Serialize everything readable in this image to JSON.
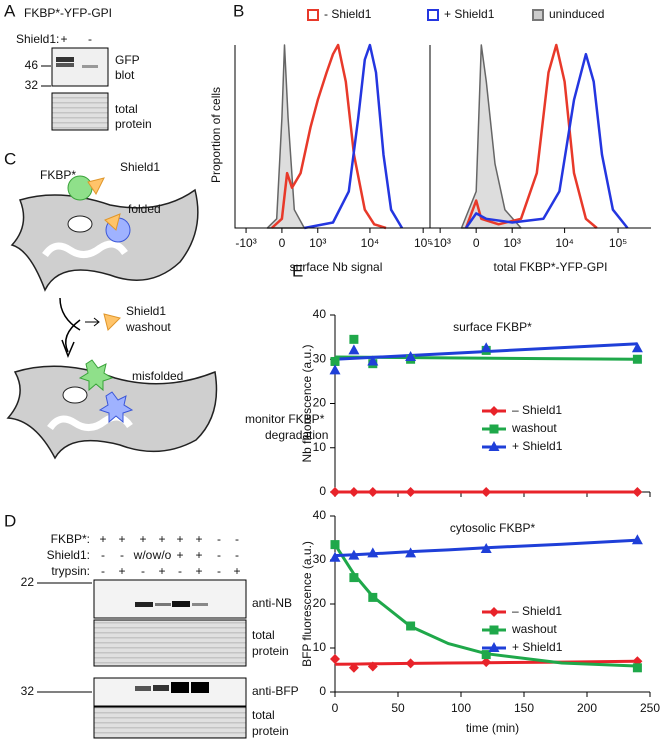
{
  "panel_a": {
    "label": "A",
    "title": "FKBP*-YFP-GPI",
    "lane_header": "Shield1:",
    "lanes": [
      "+",
      "-"
    ],
    "markers": [
      "46",
      "32"
    ],
    "blot_label": [
      "GFP",
      "blot"
    ],
    "loading_label": [
      "total",
      "protein"
    ]
  },
  "panel_b": {
    "label": "B",
    "legend": [
      {
        "name": "- Shield1",
        "color": "#e8392a"
      },
      {
        "name": "+ Shield1",
        "color": "#2436e0"
      },
      {
        "name": "uninduced",
        "color": "#777777"
      }
    ],
    "y_label": "Proportion of cells",
    "histograms": [
      {
        "x_label": "surface Nb signal",
        "xlim": [
          -1660,
          182000
        ],
        "ylim": [
          0,
          100
        ],
        "xticks": [
          {
            "value": -1000,
            "label": "-10³"
          },
          0,
          {
            "value": 1000,
            "label": "10³"
          },
          {
            "value": 10000,
            "label": "10⁴"
          },
          {
            "value": 100000,
            "label": "10⁵"
          }
        ],
        "series": [
          {
            "color": "#666666",
            "fill": "#dddddd",
            "x": [
              -300,
              -100,
              0,
              50,
              120,
              250,
              500
            ],
            "values": [
              0,
              5,
              60,
              100,
              60,
              10,
              0
            ]
          },
          {
            "color": "#e8392a",
            "x": [
              -200,
              0,
              100,
              200,
              400,
              700,
              1000,
              1500,
              2000,
              2500,
              3500,
              5000,
              8000,
              12000,
              20000
            ],
            "values": [
              0,
              5,
              30,
              22,
              30,
              55,
              70,
              85,
              95,
              100,
              80,
              40,
              10,
              2,
              0
            ]
          },
          {
            "color": "#2436e0",
            "x": [
              500,
              2000,
              4000,
              6000,
              8000,
              10000,
              13000,
              18000,
              25000,
              40000
            ],
            "values": [
              0,
              3,
              20,
              60,
              92,
              100,
              85,
              40,
              10,
              0
            ]
          }
        ]
      },
      {
        "x_label": "total FKBP*-YFP-GPI",
        "xlim": [
          -1590,
          413000
        ],
        "ylim": [
          0,
          100
        ],
        "xticks": [
          {
            "value": -1000,
            "label": "-10³"
          },
          0,
          {
            "value": 1000,
            "label": "10³"
          },
          {
            "value": 10000,
            "label": "10⁴"
          },
          {
            "value": 100000,
            "label": "10⁵"
          }
        ],
        "series": [
          {
            "color": "#666666",
            "fill": "#dddddd",
            "x": [
              -300,
              0,
              100,
              200,
              400,
              700,
              1500
            ],
            "values": [
              0,
              20,
              100,
              80,
              35,
              10,
              0
            ]
          },
          {
            "color": "#e8392a",
            "x": [
              -200,
              0,
              100,
              500,
              1500,
              3000,
              5000,
              7000,
              10000,
              15000,
              25000,
              40000
            ],
            "values": [
              0,
              15,
              5,
              2,
              5,
              30,
              85,
              100,
              80,
              30,
              5,
              0
            ]
          },
          {
            "color": "#2436e0",
            "x": [
              -200,
              0,
              200,
              1000,
              4000,
              8000,
              15000,
              25000,
              35000,
              50000,
              80000,
              150000
            ],
            "values": [
              0,
              8,
              5,
              3,
              5,
              20,
              70,
              95,
              80,
              40,
              10,
              0
            ]
          }
        ]
      }
    ]
  },
  "panel_c": {
    "label": "C",
    "fkbp": "FKBP*",
    "shield": "Shield1",
    "folded": "folded",
    "washout": [
      "Shield1",
      "washout"
    ],
    "misfolded": "misfolded",
    "monitor": [
      "monitor FKBP*",
      "degradation"
    ]
  },
  "panel_d": {
    "label": "D",
    "rows": [
      {
        "name": "FKBP*:",
        "lanes": [
          "+",
          "+",
          "+",
          "+",
          "+",
          "+",
          "-",
          "-"
        ]
      },
      {
        "name": "Shield1:",
        "lanes": [
          "-",
          "-",
          "w/o",
          "w/o",
          "+",
          "+",
          "-",
          "-"
        ]
      },
      {
        "name": "trypsin:",
        "lanes": [
          "-",
          "+",
          "-",
          "+",
          "-",
          "+",
          "-",
          "+"
        ]
      }
    ],
    "markers": [
      "22",
      "32"
    ],
    "blot_labels": [
      "anti-NB",
      "anti-BFP"
    ],
    "loading_label": [
      "total",
      "protein"
    ]
  },
  "panel_e": {
    "label": "E",
    "charts": [
      {
        "type": "line",
        "title": "surface FKBP*",
        "y_label": "Nb fluorescence (a.u.)",
        "xlim": [
          0,
          250
        ],
        "xticks": [
          0,
          50,
          100,
          150,
          200,
          250
        ],
        "ylim": [
          0,
          40
        ],
        "yticks": [
          0,
          10,
          20,
          30,
          40
        ],
        "x": [
          0,
          15,
          30,
          60,
          120,
          240
        ],
        "fit_x": [
          0,
          240
        ],
        "series": [
          {
            "name": "– Shield1",
            "color": "#e8232a",
            "marker": "diamond",
            "values": [
              0,
              0,
              0,
              0,
              0,
              0
            ],
            "fit": [
              0,
              0
            ]
          },
          {
            "name": "washout",
            "color": "#1fa84a",
            "marker": "square",
            "values": [
              29.5,
              34.5,
              29,
              30,
              32,
              30
            ],
            "fit": [
              30.5,
              30
            ]
          },
          {
            "name": "+ Shield1",
            "color": "#1f3fd8",
            "marker": "triangle",
            "values": [
              27.5,
              32,
              29.5,
              30.5,
              32.5,
              32.5
            ],
            "fit": [
              30,
              33.5
            ]
          }
        ]
      },
      {
        "type": "line",
        "title": "cytosolic FKBP*",
        "y_label": "BFP fluorescence (a.u.)",
        "x_label": "time (min)",
        "xlim": [
          0,
          250
        ],
        "xticks": [
          0,
          50,
          100,
          150,
          200,
          250
        ],
        "ylim": [
          0,
          40
        ],
        "yticks": [
          0,
          10,
          20,
          30,
          40
        ],
        "x": [
          0,
          15,
          30,
          60,
          120,
          240
        ],
        "fit_x": [
          0,
          15,
          30,
          60,
          90,
          120,
          180,
          240
        ],
        "series": [
          {
            "name": "– Shield1",
            "color": "#e8232a",
            "marker": "diamond",
            "values": [
              7.5,
              5.5,
              5.8,
              6.5,
              6.8,
              7
            ],
            "fit": [
              6.3,
              6.35,
              6.4,
              6.5,
              6.6,
              6.65,
              6.8,
              7
            ]
          },
          {
            "name": "washout",
            "color": "#1fa84a",
            "marker": "square",
            "values": [
              33.5,
              26,
              21.5,
              15,
              8.5,
              5.5
            ],
            "fit": [
              33.5,
              26.8,
              21.7,
              14.9,
              11,
              8.7,
              6.6,
              5.9
            ]
          },
          {
            "name": "+ Shield1",
            "color": "#1f3fd8",
            "marker": "triangle",
            "values": [
              30.5,
              31,
              31.5,
              31.5,
              32.5,
              34.5
            ],
            "fit": [
              31,
              31.2,
              31.4,
              31.9,
              32.3,
              32.8,
              33.6,
              34.5
            ]
          }
        ]
      }
    ]
  }
}
